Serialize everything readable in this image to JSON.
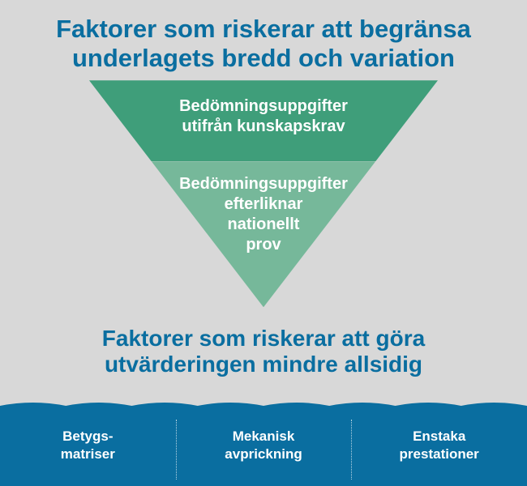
{
  "colors": {
    "background": "#d8d8d8",
    "title_text": "#0a6ea0",
    "triangle_top": "#3f9e7a",
    "triangle_bottom": "#76b89a",
    "triangle_text": "#ffffff",
    "band_bg": "#0a6ea0",
    "band_text": "#ffffff"
  },
  "typography": {
    "title_fontsize": 31,
    "subtitle_fontsize": 28,
    "triangle_text_fontsize": 20,
    "band_text_fontsize": 17
  },
  "top_title": {
    "line1": "Faktorer som riskerar att begränsa",
    "line2": "underlagets bredd och variation"
  },
  "triangle": {
    "type": "inverted-triangle",
    "upper": {
      "line1": "Bedömningsuppgifter",
      "line2": "utifrån kunskapskrav"
    },
    "lower": {
      "line1": "Bedömningsuppgifter",
      "line2": "efterliknar",
      "line3": "nationellt",
      "line4": "prov"
    },
    "geometry": {
      "top_width": 430,
      "total_height": 280,
      "split_at": 100
    }
  },
  "mid_title": {
    "line1": "Faktorer som riskerar att göra",
    "line2": "utvärderingen mindre allsidig"
  },
  "band": {
    "items": [
      {
        "line1": "Betygs-",
        "line2": "matriser"
      },
      {
        "line1": "Mekanisk",
        "line2": "avprickning"
      },
      {
        "line1": "Enstaka",
        "line2": "prestationer"
      }
    ],
    "wave": {
      "amplitude": 8,
      "count": 8
    }
  }
}
